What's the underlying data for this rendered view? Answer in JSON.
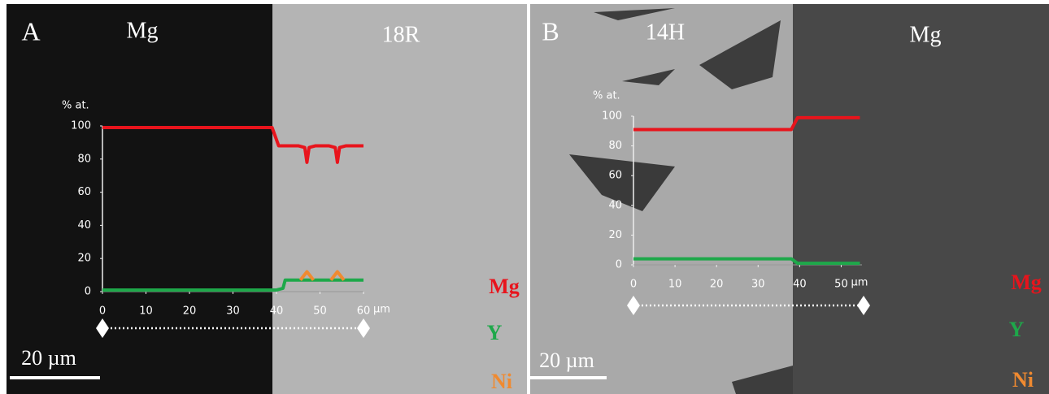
{
  "chart_data": [
    {
      "type": "line",
      "panel_label": "A",
      "phase_labels": [
        "Mg",
        "18R"
      ],
      "y_label": "% at.",
      "x_unit": "µm",
      "scale_bar": "20 µm",
      "xlim": [
        0,
        60
      ],
      "ylim": [
        0,
        100
      ],
      "xticks": [
        0,
        10,
        20,
        30,
        40,
        50,
        60
      ],
      "yticks": [
        0,
        20,
        40,
        60,
        80,
        100
      ],
      "series": [
        {
          "name": "Mg",
          "color": "#e8141c",
          "x": [
            0,
            10,
            20,
            30,
            39,
            40.5,
            45,
            46.5,
            47,
            47.5,
            49,
            52,
            53.5,
            54,
            54.5,
            56,
            60
          ],
          "values": [
            99,
            99,
            99,
            99,
            99,
            88,
            88,
            87,
            78,
            87,
            88,
            88,
            87,
            78,
            87,
            88,
            88
          ]
        },
        {
          "name": "Y",
          "color": "#1ea84a",
          "x": [
            0,
            10,
            20,
            30,
            40,
            41.5,
            42,
            50,
            60
          ],
          "values": [
            1,
            1,
            1,
            1,
            1,
            2,
            7,
            7,
            7
          ]
        },
        {
          "name": "Ni",
          "color": "#f08a30",
          "x": [
            45.5,
            47,
            48.5,
            51,
            52.5,
            54,
            55.5
          ],
          "values": [
            7,
            12,
            7,
            null,
            7,
            12,
            7
          ]
        }
      ]
    },
    {
      "type": "line",
      "panel_label": "B",
      "phase_labels": [
        "14H",
        "Mg"
      ],
      "y_label": "% at.",
      "x_unit": "µm",
      "scale_bar": "20 µm",
      "xlim": [
        0,
        55
      ],
      "ylim": [
        0,
        100
      ],
      "xticks": [
        0,
        10,
        20,
        30,
        40,
        50
      ],
      "yticks": [
        0,
        20,
        40,
        60,
        80,
        100
      ],
      "series": [
        {
          "name": "Mg",
          "color": "#e8141c",
          "x": [
            0,
            10,
            20,
            30,
            38,
            39.5,
            45,
            54.5
          ],
          "values": [
            91,
            91,
            91,
            91,
            91,
            99,
            99,
            99
          ]
        },
        {
          "name": "Y",
          "color": "#1ea84a",
          "x": [
            0,
            10,
            20,
            30,
            38,
            39.5,
            45,
            54.5
          ],
          "values": [
            4,
            4,
            4,
            4,
            4,
            1,
            1,
            1
          ]
        },
        {
          "name": "Ni",
          "color": "#f08a30",
          "x": [
            0,
            54.5
          ],
          "values": [
            null,
            null
          ]
        }
      ]
    }
  ]
}
